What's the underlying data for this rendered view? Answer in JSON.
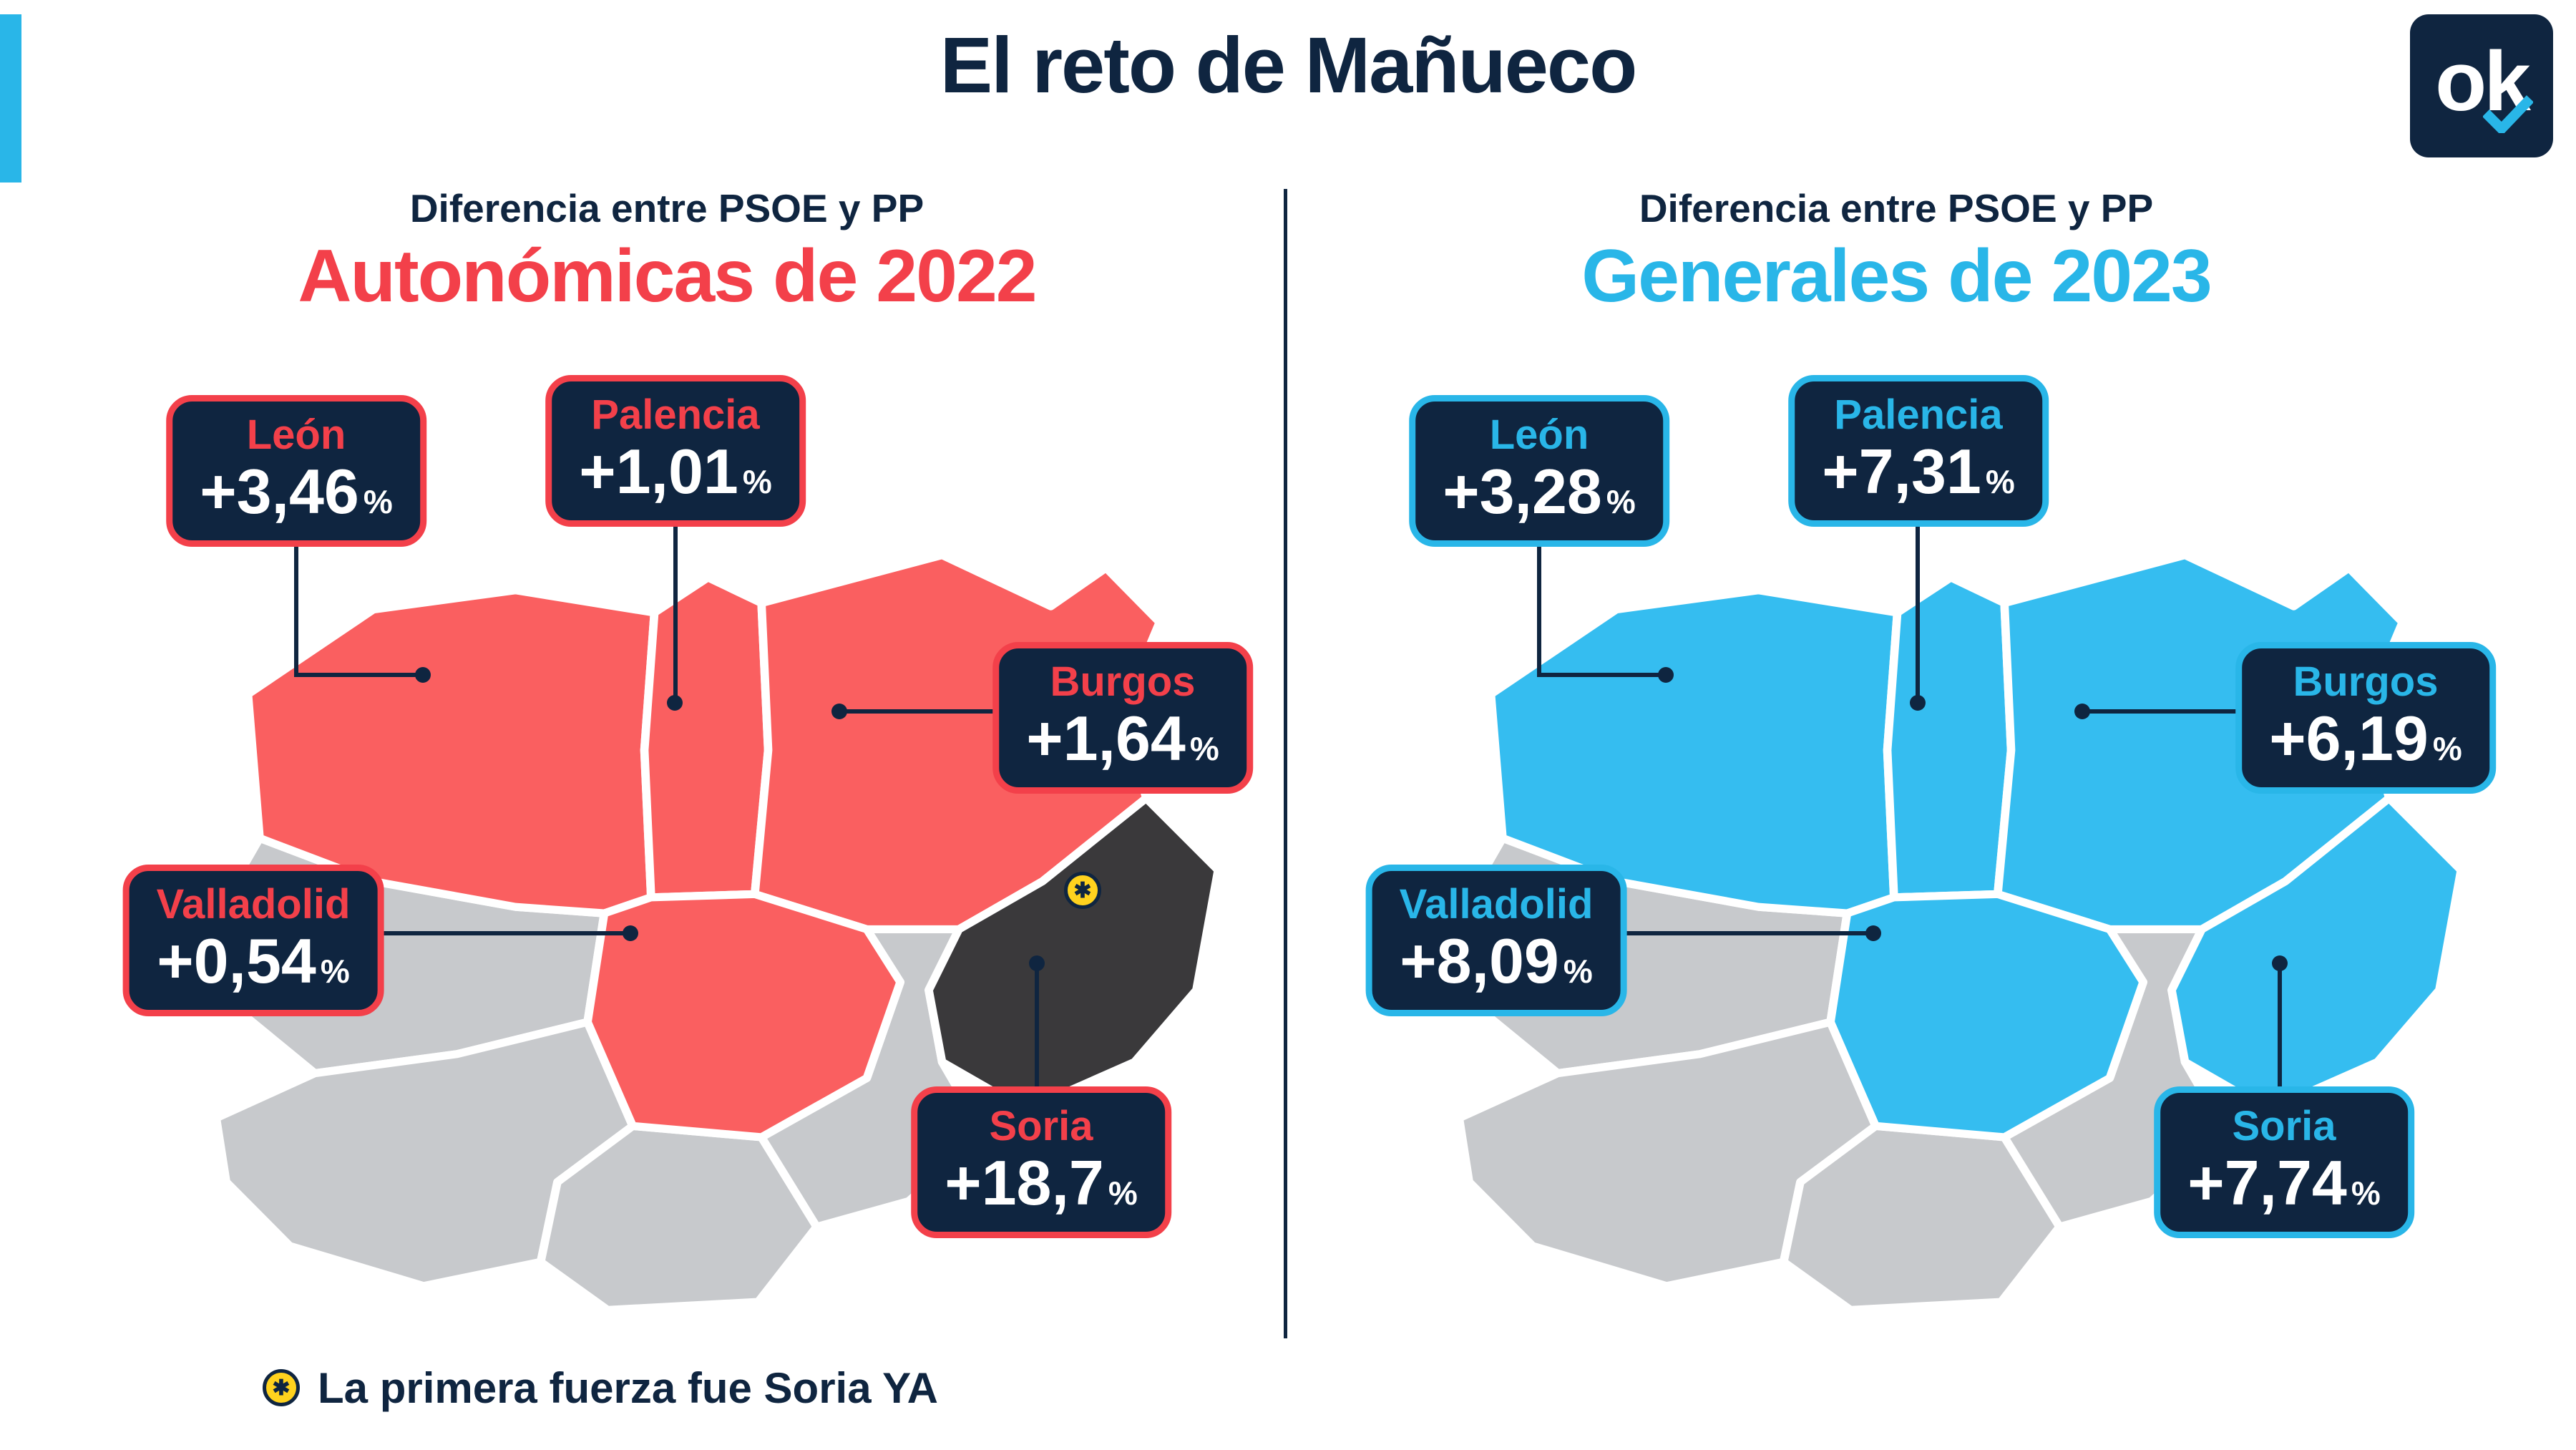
{
  "page": {
    "title": "El reto de Mañueco",
    "logo_text": "ok"
  },
  "percent_sign": "%",
  "marker_glyph": "✱",
  "footnote": {
    "text": "La primera fuerza fue Soria YA"
  },
  "panels": [
    {
      "subtitle": "Diferencia entre PSOE y PP",
      "heading": "Autonómicas de 2022",
      "accent": "#f3404a",
      "map_fill": "#fa5f60",
      "soria_fill": "#3a393b",
      "gray_fill": "#c7c9cc",
      "labels": {
        "leon": {
          "name": "León",
          "value": "+3,46"
        },
        "palencia": {
          "name": "Palencia",
          "value": "+1,01"
        },
        "burgos": {
          "name": "Burgos",
          "value": "+1,64"
        },
        "valladolid": {
          "name": "Valladolid",
          "value": "+0,54"
        },
        "soria": {
          "name": "Soria",
          "value": "+18,7"
        }
      },
      "soria_marker": true
    },
    {
      "subtitle": "Diferencia entre PSOE y PP",
      "heading": "Generales de 2023",
      "accent": "#29b6e8",
      "map_fill": "#35bdf0",
      "soria_fill": "#35bdf0",
      "gray_fill": "#c7c9cc",
      "labels": {
        "leon": {
          "name": "León",
          "value": "+3,28"
        },
        "palencia": {
          "name": "Palencia",
          "value": "+7,31"
        },
        "burgos": {
          "name": "Burgos",
          "value": "+6,19"
        },
        "valladolid": {
          "name": "Valladolid",
          "value": "+8,09"
        },
        "soria": {
          "name": "Soria",
          "value": "+7,74"
        }
      },
      "soria_marker": false
    }
  ],
  "chart_data": [
    {
      "type": "map",
      "title": "Autonómicas de 2022",
      "subtitle": "Diferencia entre PSOE y PP",
      "region": "Castilla y León",
      "categories": [
        "León",
        "Palencia",
        "Burgos",
        "Valladolid",
        "Soria"
      ],
      "values": [
        3.46,
        1.01,
        1.64,
        0.54,
        18.7
      ],
      "value_labels": [
        "+3,46%",
        "+1,01%",
        "+1,64%",
        "+0,54%",
        "+18,7%"
      ],
      "highlight_color": "#fa5f60",
      "soria_color": "#3a393b",
      "annotation": "La primera fuerza fue Soria YA"
    },
    {
      "type": "map",
      "title": "Generales de 2023",
      "subtitle": "Diferencia entre PSOE y PP",
      "region": "Castilla y León",
      "categories": [
        "León",
        "Palencia",
        "Burgos",
        "Valladolid",
        "Soria"
      ],
      "values": [
        3.28,
        7.31,
        6.19,
        8.09,
        7.74
      ],
      "value_labels": [
        "+3,28%",
        "+7,31%",
        "+6,19%",
        "+8,09%",
        "+7,74%"
      ],
      "highlight_color": "#35bdf0",
      "soria_color": "#35bdf0"
    }
  ]
}
